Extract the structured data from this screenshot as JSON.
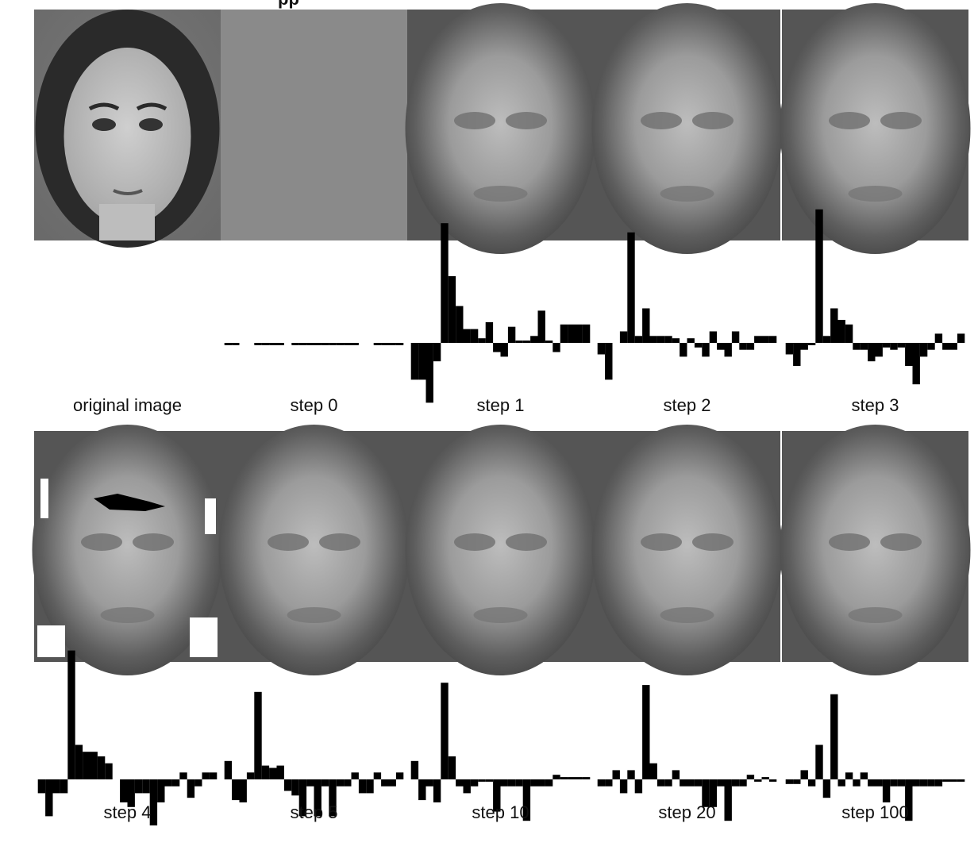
{
  "caption_fragment": "pp",
  "rows": [
    {
      "panels": [
        {
          "label": "original image",
          "tone": "original",
          "bars": []
        },
        {
          "label": "step 0",
          "tone": "flat",
          "bars": [
            -1,
            -1,
            0,
            0,
            -1,
            -1,
            -1,
            -1,
            0,
            -1,
            -1,
            -1,
            -1,
            -1,
            -1,
            -1,
            -1,
            -1,
            0,
            0,
            -1,
            -1,
            -1,
            -1
          ]
        },
        {
          "label": "step 1",
          "tone": "face",
          "bars": [
            -16,
            -16,
            -26,
            -8,
            52,
            29,
            16,
            6,
            6,
            2,
            9,
            -4,
            -6,
            7,
            1,
            1,
            3,
            14,
            1,
            -4,
            8,
            8,
            8,
            8
          ]
        },
        {
          "label": "step 2",
          "tone": "face",
          "bars": [
            -5,
            -16,
            0,
            5,
            48,
            3,
            15,
            3,
            3,
            3,
            2,
            -6,
            2,
            -2,
            -6,
            5,
            -3,
            -6,
            5,
            -3,
            -3,
            3,
            3,
            3
          ]
        },
        {
          "label": "step 3",
          "tone": "face",
          "bars": [
            -5,
            -10,
            -3,
            -1,
            58,
            3,
            15,
            10,
            8,
            -3,
            -3,
            -8,
            -6,
            -2,
            -3,
            -2,
            -10,
            -18,
            -6,
            -3,
            4,
            -3,
            -3,
            4
          ]
        }
      ]
    },
    {
      "panels": [
        {
          "label": "step 4",
          "tone": "noisy",
          "bars": [
            -6,
            -16,
            -6,
            -6,
            56,
            15,
            12,
            12,
            10,
            7,
            0,
            -10,
            -12,
            -6,
            -6,
            -20,
            -10,
            -3,
            -3,
            3,
            -8,
            -3,
            3,
            3
          ]
        },
        {
          "label": "step 5",
          "tone": "face",
          "bars": [
            8,
            -9,
            -10,
            3,
            38,
            6,
            5,
            6,
            -5,
            -7,
            -16,
            -3,
            -16,
            -3,
            -16,
            -3,
            -3,
            3,
            -6,
            -6,
            3,
            -3,
            -3,
            3
          ]
        },
        {
          "label": "step 10",
          "tone": "face",
          "bars": [
            8,
            -9,
            -3,
            -10,
            42,
            10,
            -3,
            -6,
            -3,
            -1,
            -1,
            -14,
            -3,
            -3,
            -3,
            -18,
            -3,
            -3,
            -3,
            2,
            1,
            1,
            1,
            1
          ]
        },
        {
          "label": "step 20",
          "tone": "face",
          "bars": [
            -3,
            -3,
            4,
            -6,
            4,
            -6,
            41,
            7,
            -3,
            -3,
            4,
            -3,
            -3,
            -3,
            -12,
            -12,
            -3,
            -18,
            -3,
            -3,
            2,
            -1,
            1,
            -1
          ]
        },
        {
          "label": "step 100",
          "tone": "face",
          "bars": [
            -2,
            -2,
            4,
            -3,
            15,
            -8,
            37,
            -3,
            3,
            -3,
            3,
            -3,
            -3,
            -10,
            -3,
            -3,
            -18,
            -3,
            -3,
            -3,
            -3,
            -1,
            -1,
            -1
          ]
        }
      ]
    }
  ]
}
